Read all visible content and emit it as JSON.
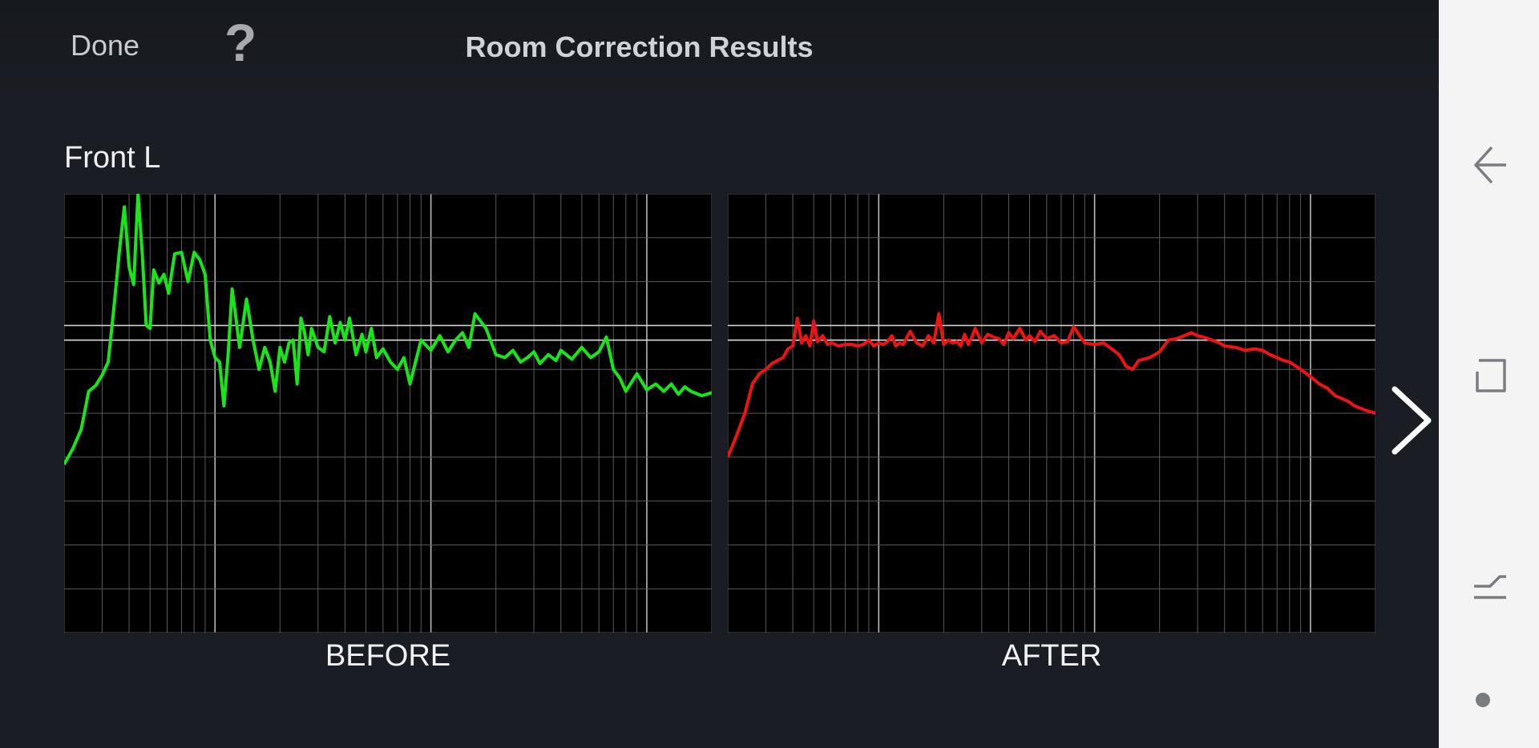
{
  "header": {
    "done_label": "Done",
    "help_label": "?",
    "title": "Room Correction Results"
  },
  "channel_name": "Front L",
  "charts": {
    "before_label": "BEFORE",
    "after_label": "AFTER"
  },
  "colors": {
    "before_line": "#19e619",
    "after_line": "#ee1414",
    "background": "#1a1d23",
    "chart_background": "#000000",
    "grid": "#5a5a5a"
  },
  "icons": {
    "next": "chevron-right-icon",
    "nav_back": "back-arrow-icon",
    "nav_recents": "recents-icon",
    "nav_home": "home-icon",
    "nav_dot": "dot-icon"
  },
  "chart_data": [
    {
      "type": "line",
      "title": "BEFORE",
      "xscale": "log",
      "xlim": [
        20,
        20000
      ],
      "ylim": [
        -20,
        10
      ],
      "grid": true,
      "series": [
        {
          "x": [
            20,
            22,
            24,
            26,
            28,
            30,
            32,
            34,
            36,
            38,
            40,
            42,
            44,
            46,
            48,
            50,
            52,
            55,
            58,
            61,
            65,
            70,
            75,
            80,
            85,
            90,
            95,
            100,
            105,
            110,
            115,
            120,
            125,
            130,
            140,
            150,
            160,
            170,
            180,
            190,
            200,
            210,
            220,
            230,
            240,
            250,
            260,
            270,
            280,
            300,
            320,
            340,
            360,
            380,
            400,
            420,
            450,
            480,
            500,
            530,
            560,
            600,
            650,
            700,
            750,
            800,
            900,
            1000,
            1100,
            1200,
            1300,
            1400,
            1500,
            1600,
            1800,
            2000,
            2200,
            2400,
            2600,
            2800,
            3000,
            3200,
            3500,
            3800,
            4000,
            4500,
            5000,
            5500,
            6000,
            6500,
            7000,
            7500,
            8000,
            9000,
            10000,
            11000,
            12000,
            13000,
            14000,
            15000,
            16000,
            18000,
            20000
          ],
          "values": [
            -8.5,
            -7.4,
            -6.1,
            -3.5,
            -3.1,
            -2.4,
            -1.5,
            2.2,
            6.0,
            9.1,
            5.0,
            3.8,
            10.0,
            6.0,
            1.0,
            0.8,
            4.8,
            3.9,
            4.5,
            3.2,
            5.9,
            6.0,
            4.0,
            6.0,
            5.5,
            4.5,
            0.0,
            -1.2,
            -1.5,
            -4.5,
            -1.0,
            3.5,
            1.5,
            -0.5,
            2.8,
            0.0,
            -2.0,
            -0.5,
            -1.5,
            -3.5,
            -0.5,
            -1.5,
            -0.2,
            0.0,
            -3.0,
            1.5,
            0.5,
            -1.0,
            0.8,
            -0.5,
            -0.8,
            1.6,
            -0.2,
            1.2,
            0.0,
            1.5,
            -1.0,
            0.4,
            -0.8,
            0.8,
            -1.2,
            -0.6,
            -1.5,
            -2.0,
            -1.2,
            -3.0,
            0.0,
            -0.7,
            0.3,
            -0.8,
            0.0,
            0.5,
            -0.5,
            1.8,
            0.8,
            -1.0,
            -1.2,
            -0.7,
            -1.5,
            -1.2,
            -0.8,
            -1.6,
            -1.0,
            -1.4,
            -0.7,
            -1.3,
            -0.5,
            -1.2,
            -0.8,
            0.2,
            -2.0,
            -2.6,
            -3.5,
            -2.3,
            -3.4,
            -3.0,
            -3.5,
            -3.0,
            -3.7,
            -3.2,
            -3.5,
            -3.8,
            -3.6
          ]
        }
      ]
    },
    {
      "type": "line",
      "title": "AFTER",
      "xscale": "log",
      "xlim": [
        20,
        20000
      ],
      "ylim": [
        -20,
        10
      ],
      "grid": true,
      "series": [
        {
          "x": [
            20,
            22,
            24,
            26,
            28,
            30,
            32,
            34,
            36,
            38,
            40,
            42,
            44,
            46,
            48,
            50,
            52,
            55,
            58,
            61,
            65,
            70,
            75,
            80,
            85,
            90,
            95,
            100,
            105,
            110,
            115,
            120,
            125,
            130,
            140,
            150,
            160,
            170,
            180,
            190,
            200,
            210,
            220,
            230,
            240,
            250,
            260,
            270,
            280,
            300,
            320,
            340,
            360,
            380,
            400,
            420,
            450,
            480,
            500,
            530,
            560,
            600,
            650,
            700,
            750,
            800,
            900,
            1000,
            1100,
            1200,
            1300,
            1400,
            1500,
            1600,
            1800,
            2000,
            2200,
            2400,
            2600,
            2800,
            3000,
            3200,
            3500,
            3800,
            4000,
            4500,
            5000,
            5500,
            6000,
            6500,
            7000,
            7500,
            8000,
            9000,
            10000,
            11000,
            12000,
            13000,
            14000,
            15000,
            16000,
            18000,
            20000
          ],
          "values": [
            -8.0,
            -6.5,
            -5.0,
            -3.0,
            -2.3,
            -2.0,
            -1.6,
            -1.4,
            -1.2,
            -0.6,
            -0.4,
            1.5,
            -0.2,
            0.3,
            -0.4,
            1.3,
            -0.1,
            0.3,
            -0.3,
            -0.2,
            -0.4,
            -0.3,
            -0.3,
            -0.4,
            -0.3,
            0.0,
            -0.4,
            -0.2,
            -0.3,
            -0.1,
            0.3,
            -0.4,
            -0.2,
            -0.3,
            0.6,
            -0.2,
            -0.4,
            0.3,
            -0.2,
            1.8,
            -0.3,
            0.0,
            -0.2,
            -0.1,
            -0.4,
            0.4,
            -0.3,
            0.2,
            0.8,
            -0.2,
            0.4,
            0.2,
            0.1,
            -0.3,
            0.5,
            0.1,
            0.8,
            0.0,
            0.3,
            -0.1,
            0.6,
            0.1,
            0.3,
            -0.2,
            -0.1,
            0.9,
            -0.2,
            -0.3,
            -0.2,
            -0.6,
            -1.0,
            -1.8,
            -2.0,
            -1.4,
            -1.2,
            -0.8,
            0.0,
            0.1,
            0.3,
            0.5,
            0.3,
            0.2,
            0.0,
            -0.2,
            -0.4,
            -0.5,
            -0.7,
            -0.6,
            -0.7,
            -1.0,
            -1.2,
            -1.4,
            -1.5,
            -2.0,
            -2.5,
            -3.0,
            -3.3,
            -3.8,
            -4.0,
            -4.2,
            -4.5,
            -4.8,
            -5.0
          ]
        }
      ]
    }
  ]
}
